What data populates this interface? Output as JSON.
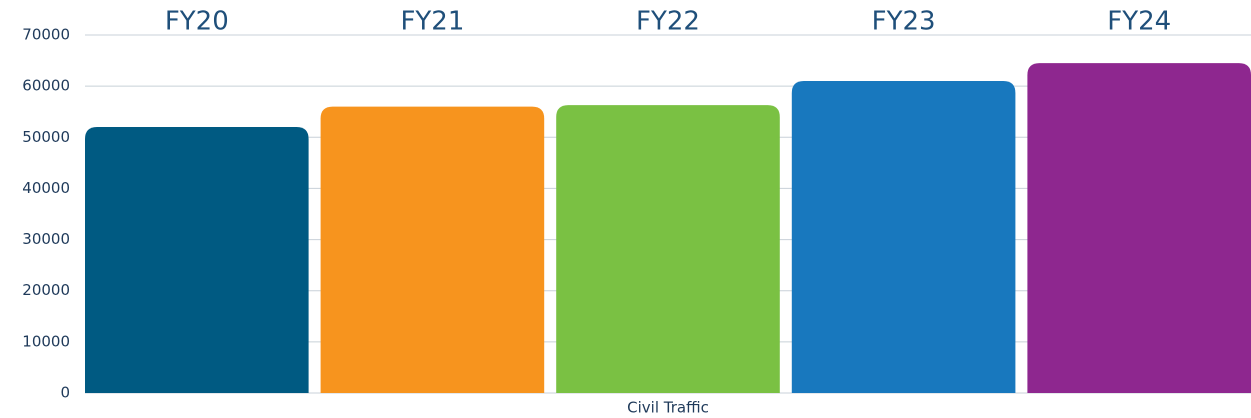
{
  "chart_data": {
    "type": "bar",
    "categories": [
      "Civil Traffic"
    ],
    "series": [
      {
        "name": "FY20",
        "color": "#005a82",
        "values": [
          52000
        ]
      },
      {
        "name": "FY21",
        "color": "#f7941e",
        "values": [
          56000
        ]
      },
      {
        "name": "FY22",
        "color": "#7ac143",
        "values": [
          56300
        ]
      },
      {
        "name": "FY23",
        "color": "#1878be",
        "values": [
          61000
        ]
      },
      {
        "name": "FY24",
        "color": "#8e278f",
        "values": [
          64500
        ]
      }
    ],
    "ylim": [
      0,
      70000
    ],
    "yticks": [
      0,
      10000,
      20000,
      30000,
      40000,
      50000,
      60000,
      70000
    ],
    "grid": true
  }
}
